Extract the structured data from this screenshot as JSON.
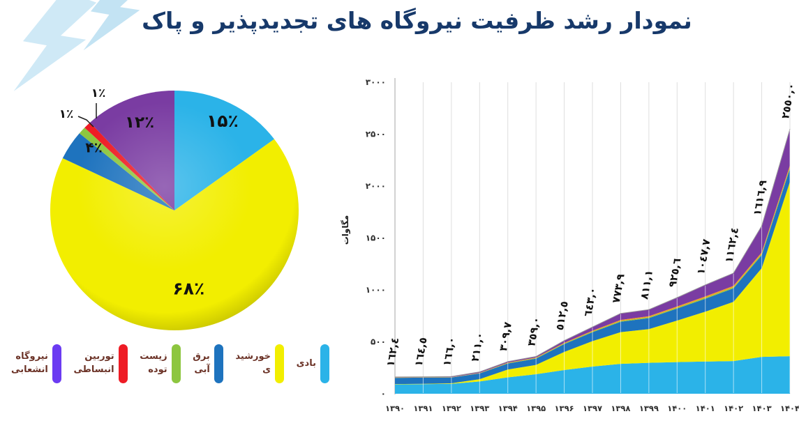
{
  "title": "نمودار رشد ظرفیت نیروگاه های تجدیدپذیر و پاک",
  "decor": {
    "bolt_color_1": "#cfe9f6",
    "bolt_color_2": "#c3e3f3"
  },
  "legend": {
    "text_color": "#6b3226",
    "items": [
      {
        "name": "wind",
        "label": "بادی",
        "color": "#2bb3e8"
      },
      {
        "name": "solar",
        "label": "خورشید\nی",
        "color": "#f2ee00"
      },
      {
        "name": "hydro",
        "label": "برق\nآبی",
        "color": "#1e73be"
      },
      {
        "name": "biomass",
        "label": "زیست\nتوده",
        "color": "#8dc63f"
      },
      {
        "name": "expansion-turbine",
        "label": "توربین\nانبساطی",
        "color": "#ee1c25"
      },
      {
        "name": "distributed-generation",
        "label": "نیروگاه\nانشعابی",
        "color": "#6b3bf2"
      }
    ]
  },
  "chart_data": [
    {
      "type": "pie",
      "categories_fa": [
        "بادی",
        "خورشیدی",
        "برق آبی",
        "زیست توده",
        "توربین انبساطی",
        "نیروگاه انشعابی"
      ],
      "categories_en": [
        "wind",
        "solar",
        "hydro",
        "biomass",
        "expansion-turbine",
        "distributed-generation"
      ],
      "values_pct": [
        15,
        68,
        4,
        1,
        1,
        12
      ],
      "labels": [
        "۱۵٪",
        "۶۸٪",
        "۴٪",
        "۱٪",
        "۱٪",
        "۱۲٪"
      ],
      "colors": [
        "#2bb3e8",
        "#f2ee00",
        "#1e73be",
        "#8dc63f",
        "#ee1c25",
        "#7a3ca2"
      ],
      "start_angle_deg": 0,
      "direction": "clockwise",
      "outside_label_indices": [
        3,
        4
      ],
      "label_color": "#111111"
    },
    {
      "type": "area",
      "stacked": true,
      "x_labels": [
        "۱۳۹۰",
        "۱۳۹۱",
        "۱۳۹۲",
        "۱۳۹۳",
        "۱۳۹۴",
        "۱۳۹۵",
        "۱۳۹۶",
        "۱۳۹۷",
        "۱۳۹۸",
        "۱۳۹۹",
        "۱۴۰۰",
        "۱۴۰۱",
        "۱۴۰۲",
        "۱۴۰۳",
        "۱۴۰۴"
      ],
      "x_values": [
        1390,
        1391,
        1392,
        1393,
        1394,
        1395,
        1396,
        1397,
        1398,
        1399,
        1400,
        1401,
        1402,
        1403,
        1404
      ],
      "totals": [
        162.4,
        164.5,
        166.0,
        211.0,
        309.7,
        359.0,
        512.5,
        643.0,
        773.9,
        811.1,
        925.6,
        1047.7,
        1162.4,
        1616.9,
        2550.0
      ],
      "total_labels": [
        "١٦٢,٤",
        "١٦٤,٥",
        "١٦٦,٠",
        "٢١١,٠",
        "٣٠٩,٧",
        "٣٥٩,٠",
        "٥١٢,٥",
        "٦٤٣,٠",
        "٧٧٣,٩",
        "٨١١,١",
        "٩٢٥,٦",
        "١٠٤٧,٧",
        "١١٦٢,٤",
        "١٦١٦,٩",
        "٢٥٥٠,٠"
      ],
      "series_values_estimated_from_pixels": true,
      "series": [
        {
          "name_en": "wind",
          "name_fa": "بادی",
          "color": "#2bb3e8",
          "values": [
            90,
            92,
            95,
            118,
            158,
            188,
            228,
            262,
            288,
            298,
            305,
            310,
            315,
            355,
            362
          ]
        },
        {
          "name_en": "solar",
          "name_fa": "خورشیدی",
          "color": "#f2ee00",
          "values": [
            3,
            4,
            6,
            22,
            75,
            90,
            175,
            245,
            305,
            325,
            400,
            480,
            570,
            855,
            1680
          ]
        },
        {
          "name_en": "hydro",
          "name_fa": "برق آبی",
          "color": "#1e73be",
          "values": [
            60,
            59,
            55,
            55,
            58,
            60,
            75,
            85,
            100,
            105,
            115,
            125,
            130,
            125,
            125
          ]
        },
        {
          "name_en": "biomass",
          "name_fa": "زیست توده",
          "color": "#8dc63f",
          "values": [
            2,
            2,
            2,
            3,
            4,
            5,
            6,
            7,
            8,
            8,
            9,
            9,
            10,
            11,
            12
          ]
        },
        {
          "name_en": "expansion-turbine",
          "name_fa": "توربین انبساطی",
          "color": "#f59b22",
          "values": [
            2,
            2,
            2,
            3,
            4,
            5,
            6,
            8,
            10,
            11,
            12,
            13,
            14,
            16,
            20
          ]
        },
        {
          "name_en": "distributed-generation",
          "name_fa": "نیروگاه انشعابی",
          "color": "#7a3ca2",
          "values": [
            5,
            5,
            6,
            10,
            11,
            11,
            22,
            36,
            63,
            64,
            85,
            111,
            123,
            255,
            351
          ]
        }
      ],
      "ylabel": "مگاوات",
      "ylim": [
        0,
        3000
      ],
      "ytick_values": [
        0,
        500,
        1000,
        1500,
        2000,
        2500,
        3000
      ],
      "ytick_labels": [
        "۰",
        "۵۰۰",
        "۱۰۰۰",
        "۱۵۰۰",
        "۲۰۰۰",
        "۲۵۰۰",
        "۳۰۰۰"
      ],
      "grid": "vertical-only",
      "data_label_color": "#111111",
      "axis_text_color": "#303030"
    }
  ]
}
